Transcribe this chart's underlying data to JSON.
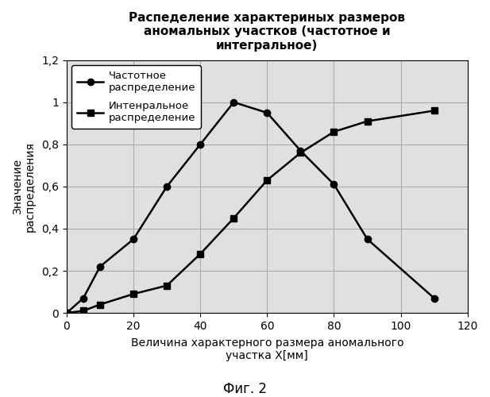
{
  "title": "Распеделение характериных размеров\nаномальных участков (частотное и\nинтегральное)",
  "xlabel": "Величина характерного размера аномального\nучастка Х[мм]",
  "ylabel": "Значение\nраспределения",
  "fig_caption": "Фиг. 2",
  "xlim": [
    0,
    120
  ],
  "ylim": [
    0,
    1.2
  ],
  "xticks": [
    0,
    20,
    40,
    60,
    80,
    100,
    120
  ],
  "yticks": [
    0,
    0.2,
    0.4,
    0.6,
    0.8,
    1.0,
    1.2
  ],
  "freq_x": [
    0,
    5,
    10,
    20,
    30,
    40,
    50,
    60,
    70,
    80,
    90,
    110
  ],
  "freq_y": [
    0,
    0.07,
    0.22,
    0.35,
    0.6,
    0.8,
    1.0,
    0.95,
    0.77,
    0.61,
    0.35,
    0.07
  ],
  "integ_x": [
    0,
    5,
    10,
    20,
    30,
    40,
    50,
    60,
    70,
    80,
    90,
    110
  ],
  "integ_y": [
    0,
    0.01,
    0.04,
    0.09,
    0.13,
    0.28,
    0.45,
    0.63,
    0.76,
    0.86,
    0.91,
    0.96
  ],
  "freq_label": "Частотное\nраспределение",
  "integ_label": "Интенральное\nраспределение",
  "line_color": "#000000",
  "background_color": "#ffffff",
  "grid_color": "#aaaaaa"
}
